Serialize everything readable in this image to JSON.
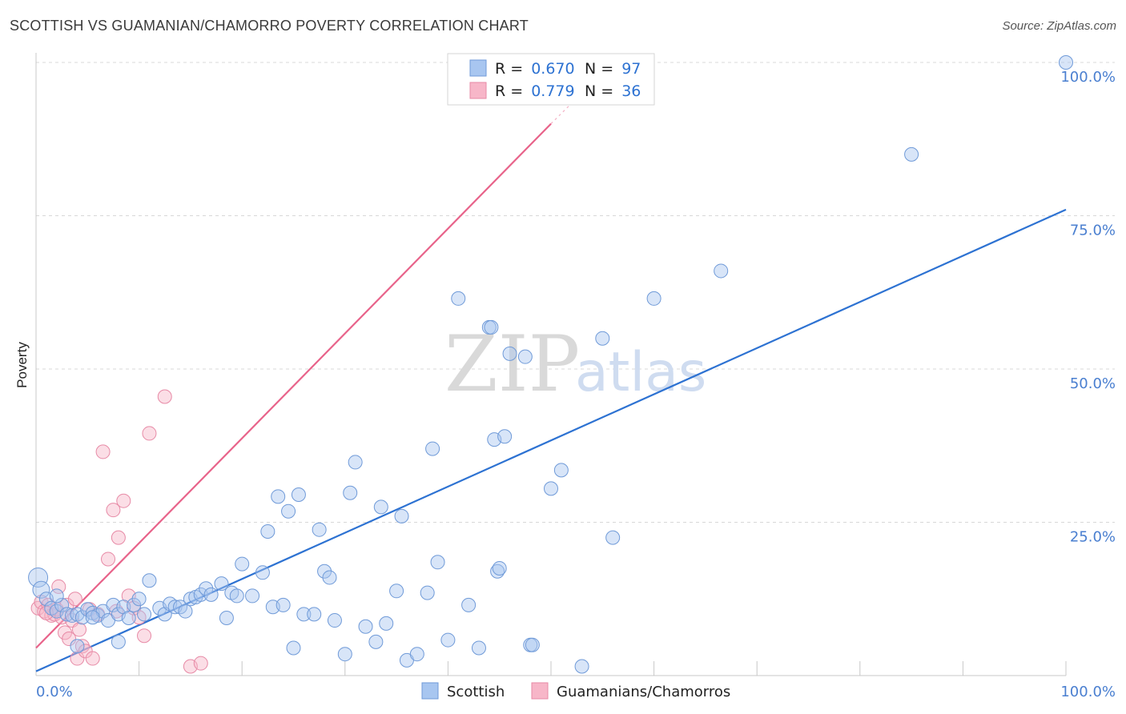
{
  "title": "SCOTTISH VS GUAMANIAN/CHAMORRO POVERTY CORRELATION CHART",
  "source": "Source: ZipAtlas.com",
  "watermark": {
    "zip": "ZIP",
    "atlas": "atlas"
  },
  "colors": {
    "scottish_fill": "#a8c6f0",
    "scottish_stroke": "#6f9ad8",
    "scottish_line": "#2d72d2",
    "guam_fill": "#f7b6c8",
    "guam_stroke": "#e78aa6",
    "guam_line": "#e8638a",
    "grid": "#d8d8d8",
    "accent_text": "#2d72d2"
  },
  "legend": {
    "row1": {
      "r_label": "R = ",
      "r_value": "0.670",
      "n_label": "N = ",
      "n_value": "97"
    },
    "row2": {
      "r_label": "R = ",
      "r_value": "0.779",
      "n_label": "N = ",
      "n_value": "36"
    }
  },
  "bottom_legend": {
    "series1": "Scottish",
    "series2": "Guamanians/Chamorros"
  },
  "chart_data": {
    "type": "scatter",
    "title": "SCOTTISH VS GUAMANIAN/CHAMORRO POVERTY CORRELATION CHART",
    "xlabel": "",
    "ylabel": "Poverty",
    "xlim": [
      0,
      100
    ],
    "ylim": [
      0,
      100
    ],
    "x_tick_labels": [
      "0.0%",
      "100.0%"
    ],
    "y_tick_labels": [
      "25.0%",
      "50.0%",
      "75.0%",
      "100.0%"
    ],
    "y_ticks": [
      25,
      50,
      75,
      100
    ],
    "grid": true,
    "legend_position": "top-center",
    "series": [
      {
        "name": "Scottish",
        "r": 0.67,
        "n": 97,
        "trend": {
          "x": [
            0,
            100
          ],
          "y": [
            0.7,
            76.0
          ]
        },
        "points": [
          [
            0.2,
            16.0
          ],
          [
            0.5,
            14.0
          ],
          [
            1.0,
            12.5
          ],
          [
            1.5,
            11.0
          ],
          [
            2.0,
            10.5
          ],
          [
            2.5,
            11.5
          ],
          [
            3.0,
            10.0
          ],
          [
            3.5,
            9.8
          ],
          [
            4.0,
            10.0
          ],
          [
            4.5,
            9.5
          ],
          [
            5.0,
            10.8
          ],
          [
            5.5,
            10.2
          ],
          [
            6.0,
            9.8
          ],
          [
            6.5,
            10.5
          ],
          [
            7.0,
            9.0
          ],
          [
            7.5,
            11.5
          ],
          [
            8.0,
            10.0
          ],
          [
            8.5,
            11.2
          ],
          [
            9.0,
            9.4
          ],
          [
            9.5,
            11.5
          ],
          [
            10.0,
            12.5
          ],
          [
            10.5,
            10.0
          ],
          [
            11.0,
            15.5
          ],
          [
            12.0,
            11.0
          ],
          [
            12.5,
            10.0
          ],
          [
            13.0,
            11.7
          ],
          [
            13.5,
            11.2
          ],
          [
            14.0,
            11.2
          ],
          [
            14.5,
            10.5
          ],
          [
            15.0,
            12.5
          ],
          [
            15.5,
            12.8
          ],
          [
            16.0,
            13.2
          ],
          [
            16.5,
            14.2
          ],
          [
            17.0,
            13.2
          ],
          [
            18.0,
            15.0
          ],
          [
            18.5,
            9.4
          ],
          [
            19.0,
            13.5
          ],
          [
            19.5,
            13.0
          ],
          [
            20.0,
            18.2
          ],
          [
            21.0,
            13.0
          ],
          [
            22.0,
            16.8
          ],
          [
            22.5,
            23.5
          ],
          [
            23.0,
            11.2
          ],
          [
            23.5,
            29.2
          ],
          [
            24.0,
            11.5
          ],
          [
            24.5,
            26.8
          ],
          [
            25.0,
            4.5
          ],
          [
            25.5,
            29.5
          ],
          [
            26.0,
            10.0
          ],
          [
            27.0,
            10.0
          ],
          [
            27.5,
            23.8
          ],
          [
            28.0,
            17.0
          ],
          [
            28.5,
            16.0
          ],
          [
            29.0,
            9.0
          ],
          [
            30.0,
            3.5
          ],
          [
            30.5,
            29.8
          ],
          [
            31.0,
            34.8
          ],
          [
            32.0,
            8.0
          ],
          [
            33.0,
            5.5
          ],
          [
            33.5,
            27.5
          ],
          [
            34.0,
            8.5
          ],
          [
            35.0,
            13.8
          ],
          [
            35.5,
            26.0
          ],
          [
            36.0,
            2.5
          ],
          [
            37.0,
            3.5
          ],
          [
            38.0,
            13.5
          ],
          [
            38.5,
            37.0
          ],
          [
            39.0,
            18.5
          ],
          [
            40.0,
            5.8
          ],
          [
            41.0,
            61.5
          ],
          [
            42.0,
            11.5
          ],
          [
            43.0,
            4.5
          ],
          [
            44.0,
            56.8
          ],
          [
            44.2,
            56.8
          ],
          [
            44.5,
            38.5
          ],
          [
            44.8,
            17.0
          ],
          [
            45.0,
            17.5
          ],
          [
            45.5,
            39.0
          ],
          [
            46.0,
            52.5
          ],
          [
            47.5,
            52.0
          ],
          [
            48.0,
            5.0
          ],
          [
            48.2,
            5.0
          ],
          [
            50.0,
            30.5
          ],
          [
            51.0,
            33.5
          ],
          [
            53.0,
            1.5
          ],
          [
            55.0,
            55.0
          ],
          [
            56.0,
            22.5
          ],
          [
            60.0,
            61.5
          ],
          [
            66.5,
            66.0
          ],
          [
            85.0,
            85.0
          ],
          [
            100.0,
            100.0
          ],
          [
            58.0,
            100.0
          ],
          [
            48.3,
            100.0
          ],
          [
            4.0,
            4.8
          ],
          [
            8.0,
            5.5
          ],
          [
            2.0,
            13.0
          ],
          [
            5.5,
            9.5
          ]
        ]
      },
      {
        "name": "Guamanians/Chamorros",
        "r": 0.779,
        "n": 36,
        "trend": {
          "x": [
            0,
            50
          ],
          "y": [
            4.5,
            90.0
          ]
        },
        "points": [
          [
            0.2,
            11.0
          ],
          [
            0.5,
            12.0
          ],
          [
            0.8,
            10.5
          ],
          [
            1.2,
            11.5
          ],
          [
            1.5,
            9.8
          ],
          [
            1.8,
            10.0
          ],
          [
            2.0,
            10.8
          ],
          [
            2.2,
            14.5
          ],
          [
            2.5,
            9.5
          ],
          [
            2.8,
            7.0
          ],
          [
            3.0,
            11.5
          ],
          [
            3.2,
            6.0
          ],
          [
            3.5,
            9.0
          ],
          [
            3.8,
            12.5
          ],
          [
            4.0,
            2.8
          ],
          [
            4.2,
            7.5
          ],
          [
            4.5,
            4.8
          ],
          [
            4.8,
            4.0
          ],
          [
            5.2,
            10.8
          ],
          [
            5.5,
            2.8
          ],
          [
            6.0,
            10.0
          ],
          [
            6.5,
            36.5
          ],
          [
            7.0,
            19.0
          ],
          [
            7.5,
            27.0
          ],
          [
            7.8,
            10.5
          ],
          [
            8.0,
            22.5
          ],
          [
            8.5,
            28.5
          ],
          [
            9.0,
            13.0
          ],
          [
            9.5,
            11.0
          ],
          [
            10.0,
            9.5
          ],
          [
            10.5,
            6.5
          ],
          [
            11.0,
            39.5
          ],
          [
            12.5,
            45.5
          ],
          [
            15.0,
            1.5
          ],
          [
            16.0,
            2.0
          ],
          [
            1.0,
            10.2
          ]
        ]
      }
    ]
  }
}
